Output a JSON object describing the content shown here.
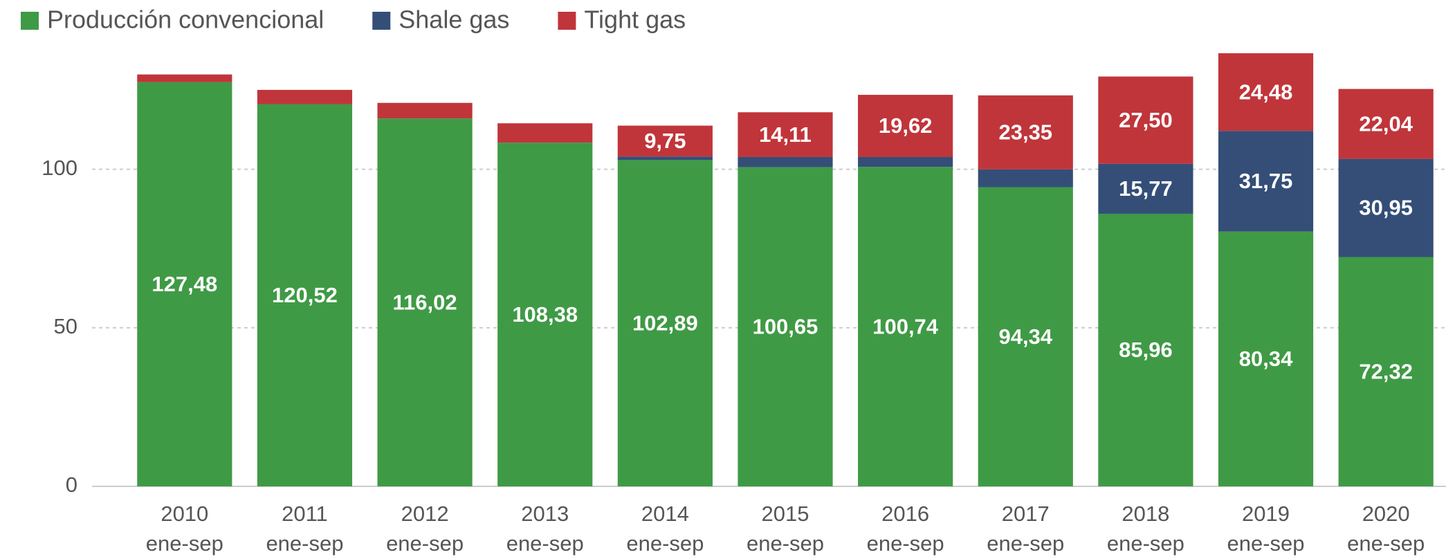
{
  "chart_data": {
    "type": "stacked-bar",
    "categories": [
      "2010 ene-sep",
      "2011 ene-sep",
      "2012 ene-sep",
      "2013 ene-sep",
      "2014 ene-sep",
      "2015 ene-sep",
      "2016 ene-sep",
      "2017 ene-sep",
      "2018 ene-sep",
      "2019 ene-sep",
      "2020 ene-sep"
    ],
    "series": [
      {
        "name": "Producción convencional",
        "color": "#3f9a45",
        "values": [
          127.48,
          120.52,
          116.02,
          108.38,
          102.89,
          100.65,
          100.74,
          94.34,
          85.96,
          80.34,
          72.32
        ],
        "value_labels": [
          "127,48",
          "120,52",
          "116,02",
          "108,38",
          "102,89",
          "100,65",
          "100,74",
          "94,34",
          "85,96",
          "80,34",
          "72,32"
        ]
      },
      {
        "name": "Shale gas",
        "color": "#344e78",
        "values": [
          0,
          0,
          0,
          0,
          1.1,
          3.2,
          3.1,
          5.6,
          15.77,
          31.75,
          30.95
        ],
        "value_labels": [
          null,
          null,
          null,
          null,
          null,
          null,
          null,
          null,
          "15,77",
          "31,75",
          "30,95"
        ]
      },
      {
        "name": "Tight gas",
        "color": "#c0353a",
        "values": [
          2.4,
          4.5,
          4.9,
          6.1,
          9.75,
          14.11,
          19.62,
          23.35,
          27.5,
          24.48,
          22.04
        ],
        "value_labels": [
          null,
          null,
          null,
          null,
          "9,75",
          "14,11",
          "19,62",
          "23,35",
          "27,50",
          "24,48",
          "22,04"
        ]
      }
    ],
    "ylim": [
      0,
      137
    ],
    "yticks": [
      0,
      50,
      100
    ],
    "grid": true,
    "legend": "top-left"
  }
}
